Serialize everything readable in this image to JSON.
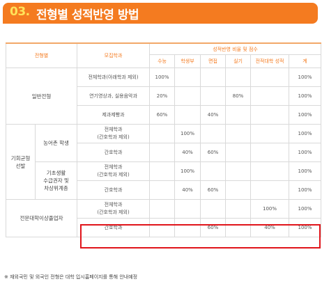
{
  "title": {
    "number": "03.",
    "text": "전형별 성적반영 방법"
  },
  "table": {
    "headers": {
      "type": "전형별",
      "major": "모집학과",
      "ratio_group": "성적반영 비율 및 점수",
      "cols": [
        "수능",
        "학생부",
        "면접",
        "실기",
        "전적대학 성적",
        "계"
      ]
    },
    "groups": [
      {
        "name": "일반전형",
        "rows": [
          {
            "major": "전체학과(아래학과 제외)",
            "cells": [
              "100%",
              "",
              "",
              "",
              "",
              "100%"
            ]
          },
          {
            "major": "연기영상과, 실용음악과",
            "cells": [
              "20%",
              "",
              "",
              "80%",
              "",
              "100%"
            ]
          },
          {
            "major": "제과제빵과",
            "cells": [
              "60%",
              "",
              "40%",
              "",
              "",
              "100%"
            ]
          }
        ]
      },
      {
        "name": "기회균형\n선발",
        "subgroups": [
          {
            "name": "농어촌 학생",
            "rows": [
              {
                "major": "전체학과\n(간호학과 제외)",
                "cells": [
                  "",
                  "100%",
                  "",
                  "",
                  "",
                  "100%"
                ]
              },
              {
                "major": "간호학과",
                "cells": [
                  "",
                  "40%",
                  "60%",
                  "",
                  "",
                  "100%"
                ]
              }
            ]
          },
          {
            "name": "기초생활\n수급권자 및\n차상위계층",
            "rows": [
              {
                "major": "전체학과\n(간호학과 제외)",
                "cells": [
                  "",
                  "100%",
                  "",
                  "",
                  "",
                  "100%"
                ]
              },
              {
                "major": "간호학과",
                "cells": [
                  "",
                  "40%",
                  "60%",
                  "",
                  "",
                  "100%"
                ]
              }
            ]
          }
        ]
      },
      {
        "name": "전문대학이상졸업자",
        "rows": [
          {
            "major": "전체학과\n(간호학과 제외)",
            "cells": [
              "",
              "",
              "",
              "",
              "100%",
              "100%"
            ]
          },
          {
            "major": "간호학과",
            "cells": [
              "",
              "",
              "60%",
              "",
              "40%",
              "100%"
            ]
          }
        ]
      }
    ]
  },
  "highlight_color": "#e0141a",
  "accent_color": "#f47b20",
  "note": "※ 재외국민 및 외국인 전형은 대학 입시홈페이지를 통해 안내예정"
}
